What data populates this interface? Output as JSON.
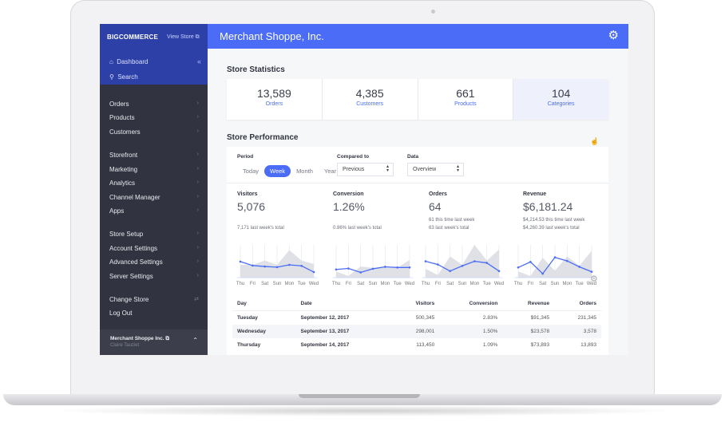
{
  "sidebar": {
    "logo": "BIGCOMMERCE",
    "view_store": "View Store ⧉",
    "dashboard": "Dashboard",
    "search": "Search",
    "collapse": "«",
    "items": [
      {
        "label": "Orders"
      },
      {
        "label": "Products"
      },
      {
        "label": "Customers"
      },
      {
        "label": "Storefront"
      },
      {
        "label": "Marketing"
      },
      {
        "label": "Analytics"
      },
      {
        "label": "Channel Manager"
      },
      {
        "label": "Apps"
      },
      {
        "label": "Store Setup"
      },
      {
        "label": "Account Settings"
      },
      {
        "label": "Advanced Settings"
      },
      {
        "label": "Server Settings"
      }
    ],
    "change_store": "Change Store",
    "log_out": "Log Out",
    "account_name": "Merchant Shoppe Inc. ⧉",
    "account_user": "Claire Tauziet"
  },
  "header": {
    "title": "Merchant Shoppe, Inc."
  },
  "store_statistics": {
    "title": "Store Statistics",
    "stats": [
      {
        "value": "13,589",
        "label": "Orders"
      },
      {
        "value": "4,385",
        "label": "Customers"
      },
      {
        "value": "661",
        "label": "Products"
      },
      {
        "value": "104",
        "label": "Categories"
      }
    ]
  },
  "store_performance": {
    "title": "Store Performance",
    "period_label": "Period",
    "periods": [
      "Today",
      "Week",
      "Month",
      "Year"
    ],
    "selected_period": "Week",
    "compared_label": "Compared to",
    "compared_value": "Previous",
    "data_label": "Data",
    "data_value": "Overview",
    "metrics": [
      {
        "title": "Visitors",
        "value": "5,076",
        "sub1": "7,171 last week's total",
        "sub2": ""
      },
      {
        "title": "Conversion",
        "value": "1.26%",
        "sub1": "0.86% last week's total",
        "sub2": ""
      },
      {
        "title": "Orders",
        "value": "64",
        "sub1": "61 this time last week",
        "sub2": "63 last week's total"
      },
      {
        "title": "Revenue",
        "value": "$6,181.24",
        "sub1": "$4,214.53 this time last week",
        "sub2": "$4,260.39 last week's total"
      }
    ],
    "chart_days": [
      "Thu",
      "Fri",
      "Sat",
      "Sun",
      "Mon",
      "Tue",
      "Wed"
    ],
    "accent": "#4a6cf7",
    "table": {
      "headers": [
        "Day",
        "Date",
        "Visitors",
        "Conversion",
        "Revenue",
        "Orders"
      ],
      "rows": [
        [
          "Tuesday",
          "September 12, 2017",
          "500,345",
          "2.83%",
          "$91,345",
          "231,345"
        ],
        [
          "Wednesday",
          "September 13, 2017",
          "298,001",
          "1.50%",
          "$23,578",
          "3,578"
        ],
        [
          "Thursday",
          "September 14, 2017",
          "113,450",
          "1.09%",
          "$73,893",
          "13,893"
        ]
      ]
    }
  },
  "chart_data": [
    {
      "type": "line",
      "x": [
        "Thu",
        "Fri",
        "Sat",
        "Sun",
        "Mon",
        "Tue",
        "Wed"
      ],
      "series": [
        {
          "values": [
            49,
            37,
            34,
            32,
            39,
            36,
            17
          ]
        },
        {
          "values": [
            39,
            39,
            52,
            39,
            84,
            52,
            42
          ]
        }
      ]
    },
    {
      "type": "line",
      "x": [
        "Thu",
        "Fri",
        "Sat",
        "Sun",
        "Mon",
        "Tue",
        "Wed"
      ],
      "series": [
        {
          "values": [
            25,
            28,
            16,
            27,
            33,
            31,
            31
          ]
        },
        {
          "values": [
            19,
            5,
            34,
            30,
            30,
            30,
            54
          ]
        }
      ]
    },
    {
      "type": "line",
      "x": [
        "Thu",
        "Fri",
        "Sat",
        "Sun",
        "Mon",
        "Tue",
        "Wed"
      ],
      "series": [
        {
          "values": [
            50,
            40,
            20,
            36,
            50,
            45,
            20
          ]
        },
        {
          "values": [
            27,
            8,
            65,
            39,
            100,
            52,
            86
          ]
        }
      ]
    },
    {
      "type": "line",
      "x": [
        "Thu",
        "Fri",
        "Sat",
        "Sun",
        "Mon",
        "Tue",
        "Wed"
      ],
      "series": [
        {
          "values": [
            31,
            48,
            12,
            62,
            51,
            33,
            18
          ]
        },
        {
          "values": [
            19,
            5,
            61,
            21,
            65,
            36,
            82
          ]
        }
      ]
    }
  ]
}
